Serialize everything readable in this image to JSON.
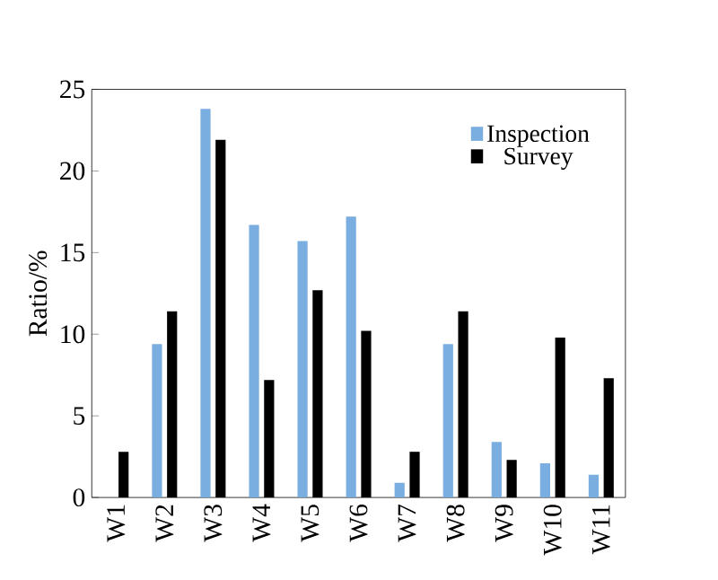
{
  "chart_data": {
    "type": "bar",
    "ylabel": "Ratio/%",
    "categories": [
      "W1",
      "W2",
      "W3",
      "W4",
      "W5",
      "W6",
      "W7",
      "W8",
      "W9",
      "W10",
      "W11"
    ],
    "series": [
      {
        "name": "Inspection",
        "color": "#7aaee0",
        "values": [
          0,
          9.4,
          23.8,
          16.7,
          15.7,
          17.2,
          0.9,
          9.4,
          3.4,
          2.1,
          1.4
        ]
      },
      {
        "name": "Survey",
        "color": "#000000",
        "values": [
          2.8,
          11.4,
          21.9,
          7.2,
          12.7,
          10.2,
          2.8,
          11.4,
          2.3,
          9.8,
          7.3
        ]
      }
    ],
    "ylim": [
      0,
      25
    ],
    "yticks": [
      0,
      5,
      10,
      15,
      20,
      25
    ],
    "legend": "top right",
    "grid": false
  }
}
